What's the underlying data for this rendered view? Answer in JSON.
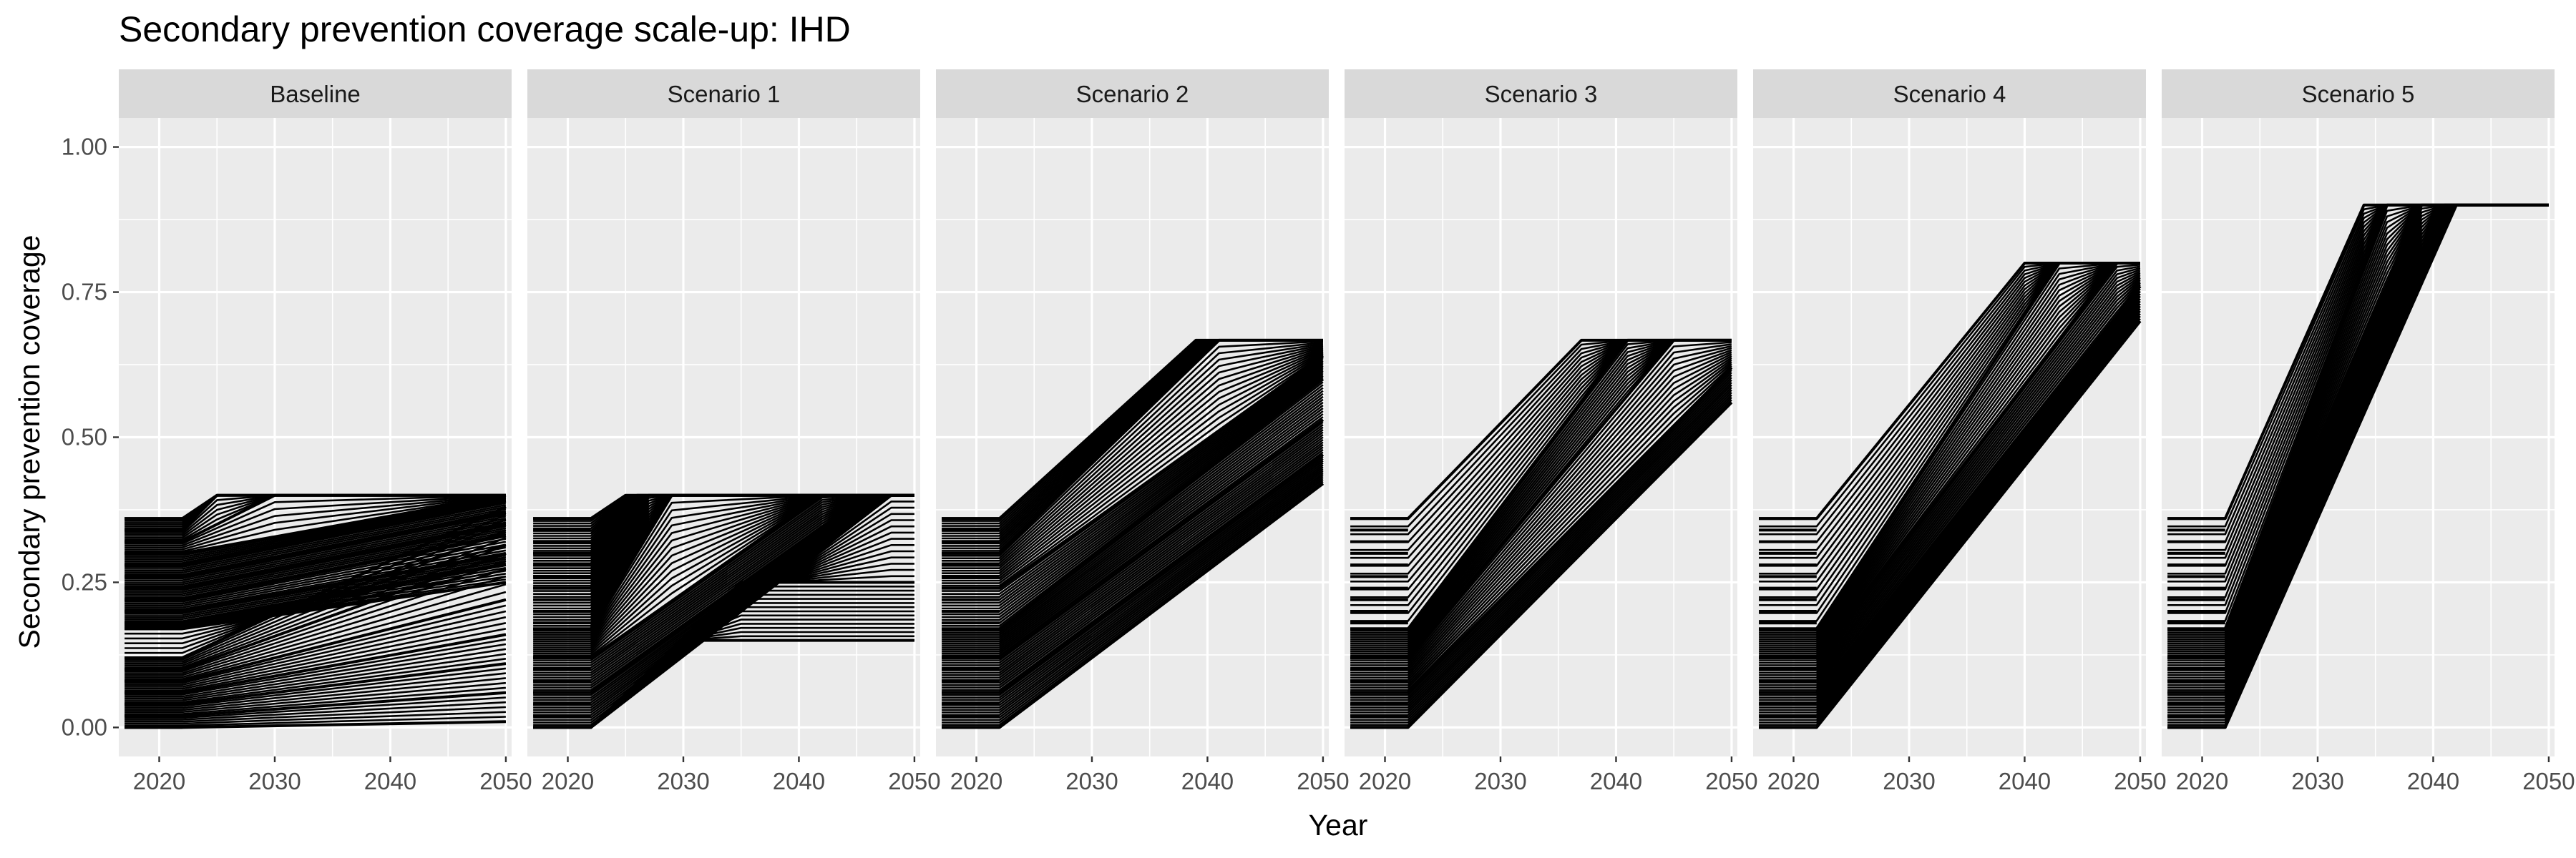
{
  "chart_data": {
    "type": "line",
    "title": "Secondary prevention coverage scale-up: IHD",
    "xlabel": "Year",
    "ylabel": "Secondary prevention coverage",
    "xlim": [
      2016.5,
      2050.5
    ],
    "ylim": [
      -0.05,
      1.05
    ],
    "x_ticks": [
      2020,
      2030,
      2040,
      2050
    ],
    "x_tick_labels": [
      "2020",
      "2030",
      "2040",
      "2050"
    ],
    "y_ticks": [
      0,
      0.25,
      0.5,
      0.75,
      1.0
    ],
    "y_tick_labels": [
      "0.00",
      "0.25",
      "0.50",
      "0.75",
      "1.00"
    ],
    "grid": true,
    "line_color": "#000000",
    "panel_background": "#ebebeb",
    "strip_background": "#d9d9d9",
    "baseline_initial_levels": [
      0.0,
      0.02,
      0.04,
      0.06,
      0.08,
      0.1,
      0.12,
      0.17,
      0.18,
      0.2,
      0.22,
      0.24,
      0.26,
      0.28,
      0.3,
      0.32,
      0.34,
      0.36
    ],
    "facets": [
      {
        "label": "Baseline",
        "series": [
          {
            "x": [
              2017,
              2022,
              2025,
              2050
            ],
            "y": [
              0.36,
              0.36,
              0.4,
              0.4
            ]
          },
          {
            "x": [
              2017,
              2022,
              2025,
              2050
            ],
            "y": [
              0.34,
              0.34,
              0.4,
              0.4
            ]
          },
          {
            "x": [
              2017,
              2022,
              2030,
              2050
            ],
            "y": [
              0.32,
              0.32,
              0.4,
              0.4
            ]
          },
          {
            "x": [
              2017,
              2022,
              2050
            ],
            "y": [
              0.3,
              0.3,
              0.4
            ]
          },
          {
            "x": [
              2017,
              2022,
              2050
            ],
            "y": [
              0.28,
              0.28,
              0.39
            ]
          },
          {
            "x": [
              2017,
              2022,
              2050
            ],
            "y": [
              0.26,
              0.26,
              0.37
            ]
          },
          {
            "x": [
              2017,
              2022,
              2050
            ],
            "y": [
              0.24,
              0.24,
              0.35
            ]
          },
          {
            "x": [
              2017,
              2022,
              2050
            ],
            "y": [
              0.22,
              0.22,
              0.33
            ]
          },
          {
            "x": [
              2017,
              2022,
              2050
            ],
            "y": [
              0.2,
              0.2,
              0.3
            ]
          },
          {
            "x": [
              2017,
              2022,
              2050
            ],
            "y": [
              0.18,
              0.18,
              0.28
            ]
          },
          {
            "x": [
              2017,
              2022,
              2050
            ],
            "y": [
              0.17,
              0.17,
              0.25
            ]
          },
          {
            "x": [
              2017,
              2022,
              2050
            ],
            "y": [
              0.12,
              0.12,
              0.38
            ]
          },
          {
            "x": [
              2017,
              2022,
              2050
            ],
            "y": [
              0.1,
              0.1,
              0.3
            ]
          },
          {
            "x": [
              2017,
              2022,
              2050
            ],
            "y": [
              0.08,
              0.08,
              0.22
            ]
          },
          {
            "x": [
              2017,
              2022,
              2050
            ],
            "y": [
              0.06,
              0.06,
              0.16
            ]
          },
          {
            "x": [
              2017,
              2022,
              2050
            ],
            "y": [
              0.04,
              0.04,
              0.11
            ]
          },
          {
            "x": [
              2017,
              2022,
              2050
            ],
            "y": [
              0.02,
              0.02,
              0.06
            ]
          },
          {
            "x": [
              2017,
              2022,
              2050
            ],
            "y": [
              0.0,
              0.0,
              0.01
            ]
          }
        ]
      },
      {
        "label": "Scenario 1",
        "series": [
          {
            "x": [
              2017,
              2022,
              2025,
              2050
            ],
            "y": [
              0.36,
              0.36,
              0.4,
              0.4
            ]
          },
          {
            "x": [
              2017,
              2022,
              2026,
              2050
            ],
            "y": [
              0.3,
              0.3,
              0.4,
              0.4
            ]
          },
          {
            "x": [
              2017,
              2022,
              2027,
              2050
            ],
            "y": [
              0.24,
              0.24,
              0.4,
              0.4
            ]
          },
          {
            "x": [
              2017,
              2022,
              2029,
              2050
            ],
            "y": [
              0.17,
              0.17,
              0.4,
              0.4
            ]
          },
          {
            "x": [
              2017,
              2022,
              2042,
              2050
            ],
            "y": [
              0.12,
              0.12,
              0.4,
              0.4
            ]
          },
          {
            "x": [
              2017,
              2022,
              2046,
              2050
            ],
            "y": [
              0.06,
              0.06,
              0.4,
              0.4
            ]
          },
          {
            "x": [
              2017,
              2022,
              2048,
              2050
            ],
            "y": [
              0.0,
              0.0,
              0.4,
              0.4
            ]
          },
          {
            "x": [
              2017,
              2022,
              2035,
              2050
            ],
            "y": [
              0.0,
              0.0,
              0.25,
              0.25
            ]
          },
          {
            "x": [
              2017,
              2022,
              2030,
              2050
            ],
            "y": [
              0.0,
              0.0,
              0.15,
              0.15
            ]
          }
        ]
      },
      {
        "label": "Scenario 2",
        "series": [
          {
            "x": [
              2017,
              2022,
              2039,
              2050
            ],
            "y": [
              0.36,
              0.36,
              0.667,
              0.667
            ]
          },
          {
            "x": [
              2017,
              2022,
              2041,
              2050
            ],
            "y": [
              0.3,
              0.3,
              0.667,
              0.667
            ]
          },
          {
            "x": [
              2017,
              2022,
              2050
            ],
            "y": [
              0.24,
              0.24,
              0.64
            ]
          },
          {
            "x": [
              2017,
              2022,
              2050
            ],
            "y": [
              0.17,
              0.17,
              0.6
            ]
          },
          {
            "x": [
              2017,
              2022,
              2050
            ],
            "y": [
              0.12,
              0.12,
              0.53
            ]
          },
          {
            "x": [
              2017,
              2022,
              2050
            ],
            "y": [
              0.06,
              0.06,
              0.47
            ]
          },
          {
            "x": [
              2017,
              2022,
              2050
            ],
            "y": [
              0.0,
              0.0,
              0.42
            ]
          }
        ]
      },
      {
        "label": "Scenario 3",
        "series": [
          {
            "x": [
              2017,
              2022,
              2037,
              2050
            ],
            "y": [
              0.36,
              0.36,
              0.667,
              0.667
            ]
          },
          {
            "x": [
              2017,
              2022,
              2041,
              2050
            ],
            "y": [
              0.17,
              0.17,
              0.667,
              0.667
            ]
          },
          {
            "x": [
              2017,
              2022,
              2045,
              2050
            ],
            "y": [
              0.12,
              0.12,
              0.667,
              0.667
            ]
          },
          {
            "x": [
              2017,
              2022,
              2050
            ],
            "y": [
              0.06,
              0.06,
              0.62
            ]
          },
          {
            "x": [
              2017,
              2022,
              2050
            ],
            "y": [
              0.0,
              0.0,
              0.56
            ]
          }
        ]
      },
      {
        "label": "Scenario 4",
        "series": [
          {
            "x": [
              2017,
              2022,
              2040,
              2050
            ],
            "y": [
              0.36,
              0.36,
              0.8,
              0.8
            ]
          },
          {
            "x": [
              2017,
              2022,
              2043,
              2050
            ],
            "y": [
              0.17,
              0.17,
              0.8,
              0.8
            ]
          },
          {
            "x": [
              2017,
              2022,
              2048,
              2050
            ],
            "y": [
              0.12,
              0.12,
              0.8,
              0.8
            ]
          },
          {
            "x": [
              2017,
              2022,
              2050
            ],
            "y": [
              0.06,
              0.06,
              0.76
            ]
          },
          {
            "x": [
              2017,
              2022,
              2050
            ],
            "y": [
              0.0,
              0.0,
              0.7
            ]
          }
        ]
      },
      {
        "label": "Scenario 5",
        "series": [
          {
            "x": [
              2017,
              2022,
              2034,
              2050
            ],
            "y": [
              0.36,
              0.36,
              0.9,
              0.9
            ]
          },
          {
            "x": [
              2017,
              2022,
              2036,
              2050
            ],
            "y": [
              0.17,
              0.17,
              0.9,
              0.9
            ]
          },
          {
            "x": [
              2017,
              2022,
              2039,
              2050
            ],
            "y": [
              0.12,
              0.12,
              0.9,
              0.9
            ]
          },
          {
            "x": [
              2017,
              2022,
              2041,
              2050
            ],
            "y": [
              0.06,
              0.06,
              0.9,
              0.9
            ]
          },
          {
            "x": [
              2017,
              2022,
              2042,
              2050
            ],
            "y": [
              0.0,
              0.0,
              0.9,
              0.9
            ]
          }
        ]
      }
    ]
  }
}
